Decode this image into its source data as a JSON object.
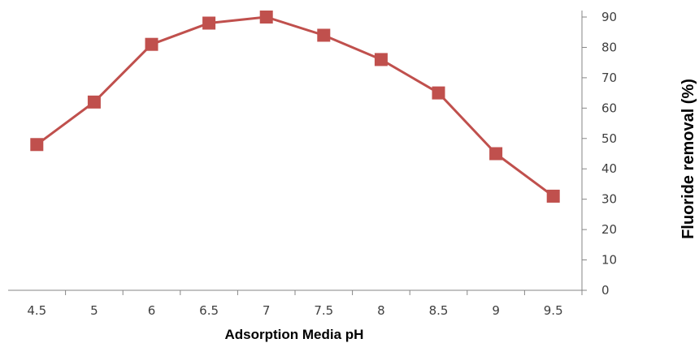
{
  "chart_data": {
    "type": "line",
    "title": "",
    "xlabel": "Adsorption  Media pH",
    "ylabel": "Fluoride removal (%)",
    "x": [
      "4.5",
      "5",
      "6",
      "6.5",
      "7",
      "7.5",
      "8",
      "8.5",
      "9",
      "9.5"
    ],
    "series": [
      {
        "values": [
          48,
          62,
          81,
          88,
          90,
          84,
          76,
          65,
          45,
          31
        ]
      }
    ],
    "ylim": [
      0,
      90
    ],
    "y_ticks": [
      0,
      10,
      20,
      30,
      40,
      50,
      60,
      70,
      80,
      90
    ],
    "y_axis_side": "right",
    "grid": false,
    "legend": "none",
    "line_color": "#c0504d",
    "marker": "square",
    "axis_color": "#868686"
  }
}
